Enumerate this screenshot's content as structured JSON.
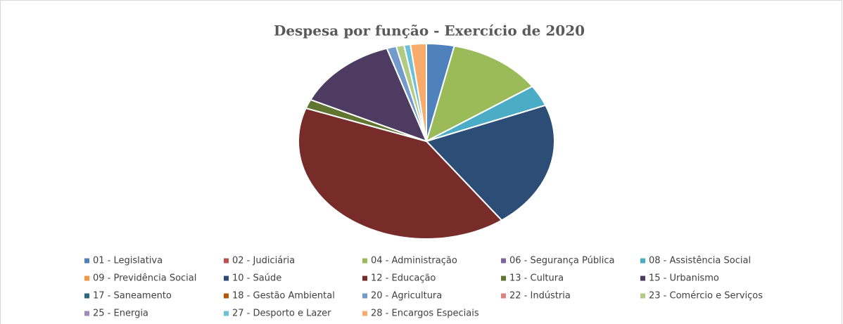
{
  "chart_data": {
    "type": "pie",
    "title": "Despesa por função - Exercício de 2020",
    "categories": [
      "01 - Legislativa",
      "02 - Judiciária",
      "04 - Administração",
      "06 - Segurança Pública",
      "08 - Assistência Social",
      "09 - Previdência Social",
      "10 - Saúde",
      "12 - Educação",
      "13 - Cultura",
      "15 - Urbanismo",
      "17 - Saneamento",
      "18 - Gestão Ambiental",
      "20 - Agricultura",
      "22 - Indústria",
      "23 - Comércio e Serviços",
      "25 - Energia",
      "27 - Desporto e Lazer",
      "28 - Encargos Especiais"
    ],
    "values": [
      3.5,
      0,
      12,
      0,
      3.5,
      0,
      21,
      40.5,
      1.5,
      13,
      0,
      0,
      1.2,
      0,
      1,
      0,
      0.8,
      2
    ],
    "colors": [
      "#4f81bd",
      "#c0504d",
      "#9bbb59",
      "#8064a2",
      "#4bacc6",
      "#f79646",
      "#2c4d75",
      "#772c2a",
      "#5f7530",
      "#4d3b62",
      "#276a7c",
      "#b65708",
      "#729aca",
      "#d9827f",
      "#b2cb83",
      "#a08bbc",
      "#6ec0d8",
      "#f9ab6b"
    ],
    "legend": "bottom"
  }
}
